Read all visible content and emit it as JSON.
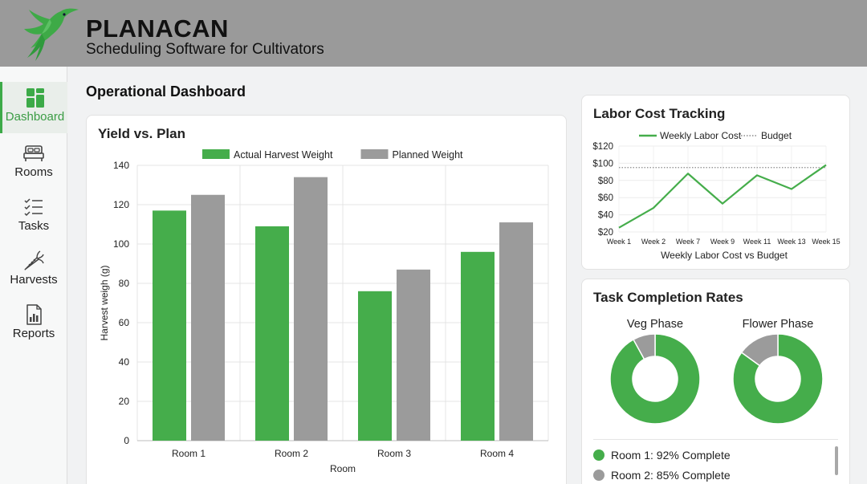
{
  "brand": {
    "title": "PLANACAN",
    "subtitle": "Scheduling Software for Cultivators"
  },
  "colors": {
    "green": "#45ad4b",
    "gray": "#9b9b9b",
    "header": "#9a9a9a"
  },
  "sidebar": {
    "items": [
      {
        "label": "Dashboard",
        "icon": "dashboard-icon",
        "active": true
      },
      {
        "label": "Rooms",
        "icon": "bed-icon",
        "active": false
      },
      {
        "label": "Tasks",
        "icon": "checklist-icon",
        "active": false
      },
      {
        "label": "Harvests",
        "icon": "carrot-icon",
        "active": false
      },
      {
        "label": "Reports",
        "icon": "report-icon",
        "active": false
      }
    ]
  },
  "page": {
    "title": "Operational Dashboard"
  },
  "yield_card": {
    "title": "Yield vs. Plan"
  },
  "labor_card": {
    "title": "Labor Cost Tracking"
  },
  "tasks_card": {
    "title": "Task Completion Rates",
    "legend": [
      {
        "label": "Room 1: 92% Complete",
        "color": "#45ad4b"
      },
      {
        "label": "Room 2: 85% Complete",
        "color": "#9b9b9b"
      }
    ]
  },
  "chart_data": [
    {
      "type": "bar",
      "categories": [
        "Room 1",
        "Room 2",
        "Room 3",
        "Room 4"
      ],
      "series": [
        {
          "name": "Actual Harvest Weight",
          "color": "#45ad4b",
          "values": [
            117,
            109,
            76,
            96
          ]
        },
        {
          "name": "Planned Weight",
          "color": "#9b9b9b",
          "values": [
            125,
            134,
            87,
            111
          ]
        }
      ],
      "xlabel": "Room",
      "ylabel": "Harvest weigh (g)",
      "ylim": [
        0,
        140
      ],
      "yticks": [
        0,
        20,
        40,
        60,
        80,
        100,
        120,
        140
      ],
      "grid": true,
      "legend": "top"
    },
    {
      "type": "line",
      "categories": [
        "Week 1",
        "Week 2",
        "Week 7",
        "Week 9",
        "Week 11",
        "Week 13",
        "Week 15"
      ],
      "series": [
        {
          "name": "Weekly Labor Cost",
          "color": "#45ad4b",
          "values": [
            25,
            48,
            88,
            53,
            86,
            70,
            98
          ]
        },
        {
          "name": "Budget",
          "color": "#8a8a8a",
          "style": "dotted",
          "values": [
            95,
            95,
            95,
            95,
            95,
            95,
            95
          ]
        }
      ],
      "xlabel": "Weekly Labor Cost vs Budget",
      "ylabel": "",
      "ylim": [
        20,
        120
      ],
      "yticks": [
        "$20",
        "$40",
        "$60",
        "$80",
        "$100",
        "$120"
      ],
      "ytick_values": [
        20,
        40,
        60,
        80,
        100,
        120
      ],
      "grid": true,
      "legend": "top"
    },
    {
      "type": "pie",
      "title": "Veg Phase",
      "values": [
        92,
        8
      ],
      "colors": [
        "#45ad4b",
        "#9b9b9b"
      ],
      "donut": true
    },
    {
      "type": "pie",
      "title": "Flower Phase",
      "values": [
        85,
        15
      ],
      "colors": [
        "#45ad4b",
        "#9b9b9b"
      ],
      "donut": true
    }
  ]
}
